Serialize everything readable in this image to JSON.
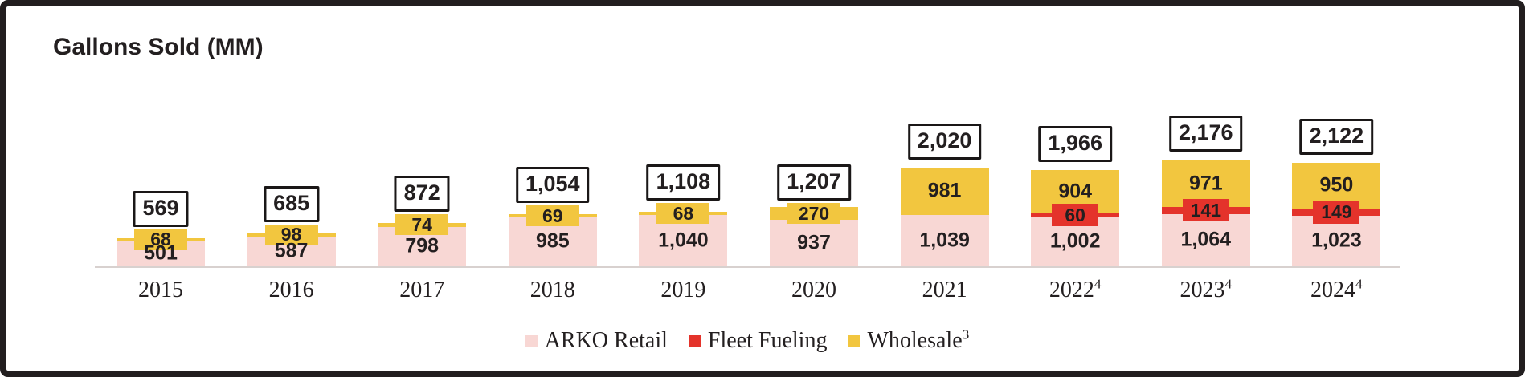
{
  "title": "Gallons Sold (MM)",
  "colors": {
    "retail": "#F8D7D4",
    "fleet": "#E4332B",
    "wholesale": "#F2C63F",
    "frame": "#221E1F",
    "text": "#231F20",
    "total_box_border": "#1A1717",
    "baseline": "#D8D1CF"
  },
  "legend": {
    "items": [
      {
        "name": "ARKO Retail",
        "sup": "",
        "color_key": "retail"
      },
      {
        "name": "Fleet Fueling",
        "sup": "",
        "color_key": "fleet"
      },
      {
        "name": "Wholesale",
        "sup": "3",
        "color_key": "wholesale"
      }
    ]
  },
  "chart_data": {
    "type": "bar",
    "stacked": true,
    "title": "Gallons Sold (MM)",
    "grid": false,
    "legend_position": "bottom",
    "value_labels": true,
    "total_labels_boxed": true,
    "categories": [
      {
        "label": "2015",
        "sup": ""
      },
      {
        "label": "2016",
        "sup": ""
      },
      {
        "label": "2017",
        "sup": ""
      },
      {
        "label": "2018",
        "sup": ""
      },
      {
        "label": "2019",
        "sup": ""
      },
      {
        "label": "2020",
        "sup": ""
      },
      {
        "label": "2021",
        "sup": ""
      },
      {
        "label": "2022",
        "sup": "4"
      },
      {
        "label": "2023",
        "sup": "4"
      },
      {
        "label": "2024",
        "sup": "4"
      }
    ],
    "series": [
      {
        "name": "ARKO Retail",
        "color_key": "retail",
        "values": [
          501,
          587,
          798,
          985,
          1040,
          937,
          1039,
          1002,
          1064,
          1023
        ]
      },
      {
        "name": "Fleet Fueling",
        "color_key": "fleet",
        "values": [
          0,
          0,
          0,
          0,
          0,
          0,
          0,
          60,
          141,
          149
        ]
      },
      {
        "name": "Wholesale",
        "sup": "3",
        "color_key": "wholesale",
        "values": [
          68,
          98,
          74,
          69,
          68,
          270,
          981,
          904,
          971,
          950
        ]
      }
    ],
    "totals": [
      569,
      685,
      872,
      1054,
      1108,
      1207,
      2020,
      1966,
      2176,
      2122
    ]
  }
}
